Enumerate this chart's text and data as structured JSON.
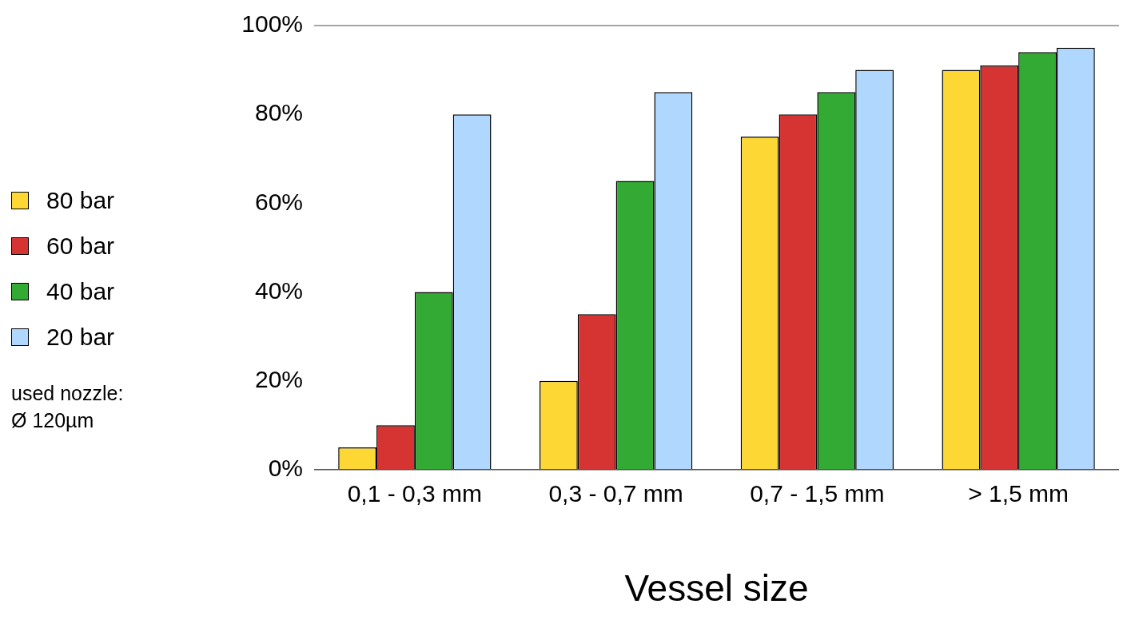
{
  "chart_data": {
    "type": "bar",
    "xlabel": "Vessel size",
    "categories": [
      "0,1 - 0,3 mm",
      "0,3 - 0,7 mm",
      "0,7 - 1,5 mm",
      "> 1,5 mm"
    ],
    "series": [
      {
        "name": "80 bar",
        "color": "#fdd835",
        "values": [
          5,
          20,
          75,
          90
        ]
      },
      {
        "name": "60 bar",
        "color": "#d63333",
        "values": [
          10,
          35,
          80,
          91
        ]
      },
      {
        "name": "40 bar",
        "color": "#33aa33",
        "values": [
          40,
          65,
          85,
          94
        ]
      },
      {
        "name": "20 bar",
        "color": "#b0d8ff",
        "values": [
          80,
          85,
          90,
          95
        ]
      }
    ],
    "ylim": [
      0,
      100
    ],
    "yticks": [
      {
        "value": 0,
        "label": "0%"
      },
      {
        "value": 20,
        "label": "20%"
      },
      {
        "value": 40,
        "label": "40%"
      },
      {
        "value": 60,
        "label": "60%"
      },
      {
        "value": 80,
        "label": "80%"
      },
      {
        "value": 100,
        "label": "100%"
      }
    ],
    "grid": false,
    "legend": "left",
    "annotations": [
      "used nozzle:\nØ 120µm"
    ]
  }
}
